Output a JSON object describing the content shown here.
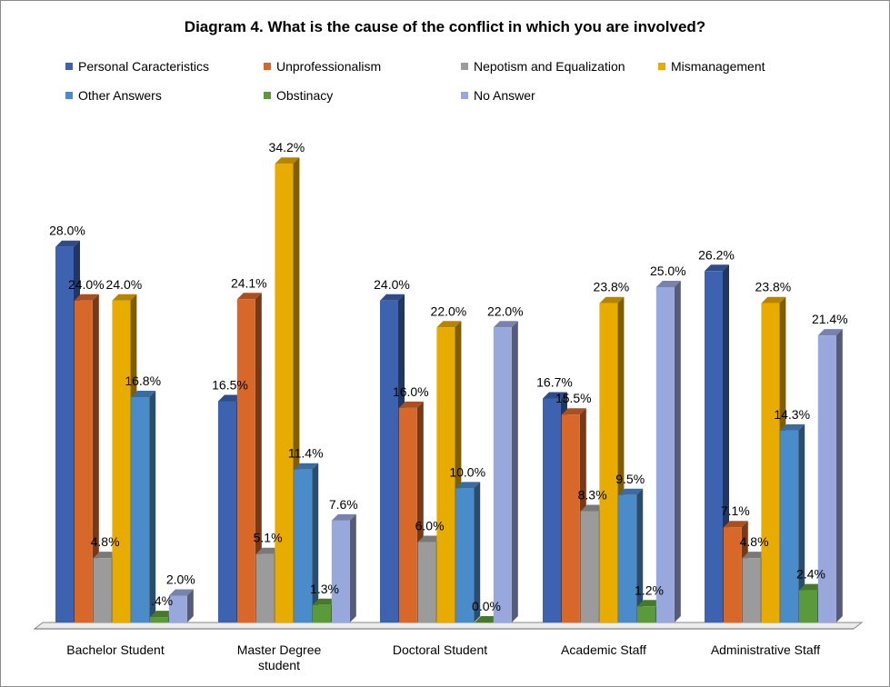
{
  "chart_data": {
    "type": "bar",
    "title": "Diagram 4. What is the cause of the conflict in which you are involved?",
    "categories": [
      "Bachelor Student",
      "Master Degree student",
      "Doctoral Student",
      "Academic Staff",
      "Administrative Staff"
    ],
    "series": [
      {
        "name": "Personal Caracteristics",
        "color": "#3c62b0",
        "values": [
          28.0,
          16.5,
          24.0,
          16.7,
          26.2
        ],
        "labels": [
          "28.0%",
          "16.5%",
          "24.0%",
          "16.7%",
          "26.2%"
        ]
      },
      {
        "name": "Unprofessionalism",
        "color": "#d8672a",
        "values": [
          24.0,
          24.1,
          16.0,
          15.5,
          7.1
        ],
        "labels": [
          "24.0%",
          "24.1%",
          "16.0%",
          "15.5%",
          "7.1%"
        ]
      },
      {
        "name": "Nepotism and Equalization",
        "color": "#9b9b9b",
        "values": [
          4.8,
          5.1,
          6.0,
          8.3,
          4.8
        ],
        "labels": [
          "4.8%",
          "5.1%",
          "6.0%",
          "8.3%",
          "4.8%"
        ]
      },
      {
        "name": "Mismanagement",
        "color": "#e8ab00",
        "values": [
          24.0,
          34.2,
          22.0,
          23.8,
          23.8
        ],
        "labels": [
          "24.0%",
          "34.2%",
          "22.0%",
          "23.8%",
          "23.8%"
        ]
      },
      {
        "name": "Other Answers",
        "color": "#4a8bc9",
        "values": [
          16.8,
          11.4,
          10.0,
          9.5,
          14.3
        ],
        "labels": [
          "16.8%",
          "11.4%",
          "10.0%",
          "9.5%",
          "14.3%"
        ]
      },
      {
        "name": "Obstinacy",
        "color": "#5a9a3a",
        "values": [
          0.4,
          1.3,
          0.0,
          1.2,
          2.4
        ],
        "labels": [
          ".4%",
          "1.3%",
          "0.0%",
          "1.2%",
          "2.4%"
        ]
      },
      {
        "name": "No Answer",
        "color": "#98a8dc",
        "values": [
          2.0,
          7.6,
          22.0,
          25.0,
          21.4
        ],
        "labels": [
          "2.0%",
          "7.6%",
          "22.0%",
          "25.0%",
          "21.4%"
        ]
      }
    ],
    "ylim": [
      0,
      36
    ],
    "grid": false,
    "legend_position": "top"
  }
}
